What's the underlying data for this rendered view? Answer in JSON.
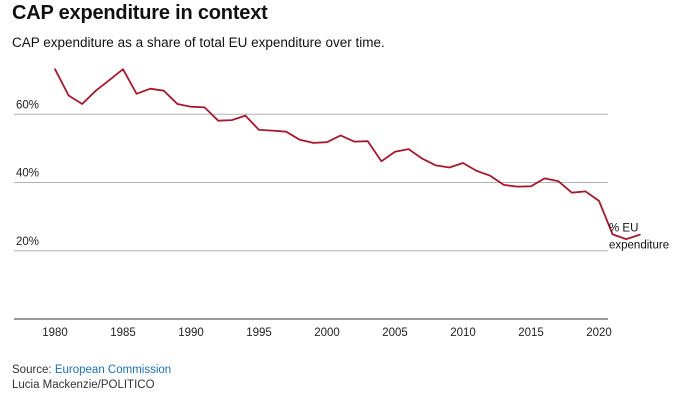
{
  "header": {
    "title": "CAP expenditure in context",
    "subtitle": "CAP expenditure as a share of total EU expenditure over time."
  },
  "footer": {
    "source_label": "Source:",
    "source_name": "European Commission",
    "credit": "Lucia Mackenzie/POLITICO"
  },
  "colors": {
    "line": "#a6192e",
    "grid": "#b3b3b3",
    "axis": "#333333"
  },
  "chart_data": {
    "type": "line",
    "title": "CAP expenditure in context",
    "subtitle": "CAP expenditure as a share of total EU expenditure over time.",
    "xlabel": "",
    "ylabel": "",
    "xlim": [
      1979,
      2024
    ],
    "ylim": [
      0,
      80
    ],
    "grid": true,
    "y_ticks": [
      20,
      40,
      60
    ],
    "y_tick_labels": [
      "20%",
      "40%",
      "60%"
    ],
    "x_ticks": [
      1980,
      1985,
      1990,
      1995,
      2000,
      2005,
      2010,
      2015,
      2020
    ],
    "x_tick_labels": [
      "1980",
      "1985",
      "1990",
      "1995",
      "2000",
      "2005",
      "2010",
      "2015",
      "2020"
    ],
    "series": [
      {
        "name": "% EU expenditure",
        "x": [
          1980,
          1981,
          1982,
          1983,
          1984,
          1985,
          1986,
          1987,
          1988,
          1989,
          1990,
          1991,
          1992,
          1993,
          1994,
          1995,
          1996,
          1997,
          1998,
          1999,
          2000,
          2001,
          2002,
          2003,
          2004,
          2005,
          2006,
          2007,
          2008,
          2009,
          2010,
          2011,
          2012,
          2013,
          2014,
          2015,
          2016,
          2017,
          2018,
          2019,
          2020,
          2021,
          2022,
          2023
        ],
        "values": [
          73.2,
          65.5,
          63.0,
          66.9,
          70.0,
          73.2,
          66.0,
          67.5,
          66.9,
          63.0,
          62.2,
          62.0,
          58.1,
          58.3,
          59.6,
          55.4,
          55.2,
          54.9,
          52.5,
          51.6,
          51.8,
          53.8,
          52.0,
          52.1,
          46.2,
          49.0,
          49.8,
          47.0,
          45.0,
          44.4,
          45.7,
          43.4,
          42.0,
          39.3,
          38.8,
          38.9,
          41.2,
          40.4,
          37.0,
          37.4,
          34.6,
          24.8,
          23.4,
          24.7
        ]
      }
    ]
  }
}
